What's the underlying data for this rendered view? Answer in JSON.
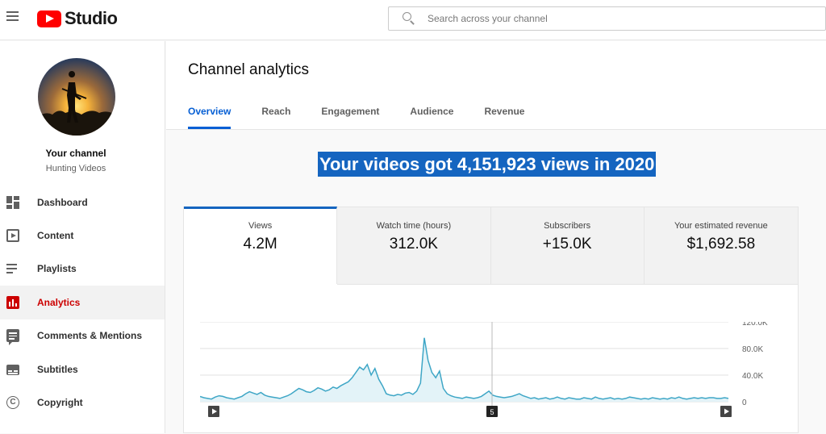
{
  "app": {
    "brand": "Studio"
  },
  "search": {
    "placeholder": "Search across your channel"
  },
  "sidebar": {
    "channel_title": "Your channel",
    "channel_subtitle": "Hunting Videos",
    "items": [
      {
        "label": "Dashboard",
        "icon": "dashboard-icon"
      },
      {
        "label": "Content",
        "icon": "content-icon"
      },
      {
        "label": "Playlists",
        "icon": "playlists-icon"
      },
      {
        "label": "Analytics",
        "icon": "analytics-icon",
        "active": true
      },
      {
        "label": "Comments & Mentions",
        "icon": "comments-icon"
      },
      {
        "label": "Subtitles",
        "icon": "subtitles-icon"
      },
      {
        "label": "Copyright",
        "icon": "copyright-icon"
      }
    ]
  },
  "main": {
    "title": "Channel analytics",
    "tabs": [
      {
        "label": "Overview",
        "active": true
      },
      {
        "label": "Reach"
      },
      {
        "label": "Engagement"
      },
      {
        "label": "Audience"
      },
      {
        "label": "Revenue"
      }
    ],
    "headline": "Your videos got 4,151,923 views in 2020",
    "metrics": [
      {
        "label": "Views",
        "value": "4.2M",
        "active": true
      },
      {
        "label": "Watch time (hours)",
        "value": "312.0K"
      },
      {
        "label": "Subscribers",
        "value": "+15.0K"
      },
      {
        "label": "Your estimated revenue",
        "value": "$1,692.58"
      }
    ]
  },
  "chart_data": {
    "type": "area",
    "series_color": "#3ea6c6",
    "ylim": [
      0,
      120000
    ],
    "y_ticks": [
      "120.0K",
      "80.0K",
      "40.0K",
      "0"
    ],
    "marker_label": "5",
    "values": [
      8000,
      6000,
      5000,
      4000,
      7000,
      9000,
      8000,
      6000,
      5000,
      4000,
      6000,
      8000,
      12000,
      15000,
      13000,
      11000,
      14000,
      10000,
      8000,
      7000,
      6000,
      5000,
      7000,
      9000,
      12000,
      16000,
      20000,
      18000,
      15000,
      14000,
      17000,
      21000,
      19000,
      16000,
      18000,
      22000,
      20000,
      24000,
      27000,
      30000,
      36000,
      44000,
      52000,
      48000,
      56000,
      40000,
      50000,
      34000,
      24000,
      12000,
      10000,
      9000,
      11000,
      10000,
      13000,
      14000,
      11000,
      16000,
      28000,
      96000,
      62000,
      44000,
      36000,
      46000,
      20000,
      12000,
      9000,
      7000,
      6000,
      5000,
      7000,
      6000,
      5000,
      6000,
      8000,
      12000,
      16000,
      10000,
      8000,
      7000,
      6000,
      7000,
      8000,
      10000,
      12000,
      9000,
      7000,
      5000,
      6000,
      4000,
      5000,
      6000,
      4000,
      5000,
      7000,
      5000,
      4000,
      6000,
      5000,
      4000,
      4000,
      6000,
      5000,
      4000,
      7000,
      5000,
      4000,
      5000,
      6000,
      4000,
      5000,
      4000,
      5000,
      7000,
      6000,
      5000,
      4000,
      5000,
      4000,
      6000,
      5000,
      4000,
      5000,
      4000,
      6000,
      5000,
      7000,
      5000,
      4000,
      5000,
      6000,
      5000,
      6000,
      5000,
      6000,
      6000,
      5000,
      5000,
      6000,
      5000
    ]
  }
}
